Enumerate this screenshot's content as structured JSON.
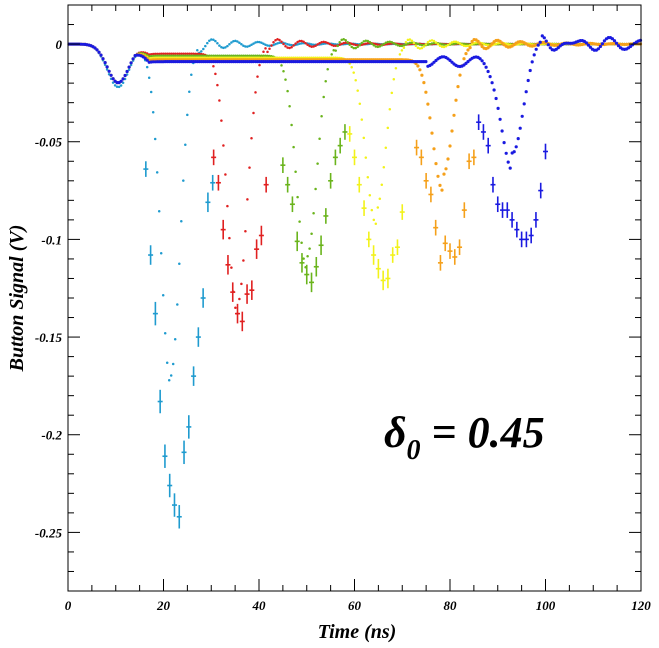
{
  "chart_data": {
    "type": "scatter",
    "title": "",
    "xlabel": "Time (ns)",
    "ylabel": "Button Signal (V)",
    "xlim": [
      0,
      120
    ],
    "ylim": [
      -0.28,
      0.02
    ],
    "x_ticks": [
      0,
      20,
      40,
      60,
      80,
      100,
      120
    ],
    "x_tick_labels": [
      "0",
      "20",
      "40",
      "60",
      "80",
      "100",
      "120"
    ],
    "y_ticks": [
      0,
      -0.05,
      -0.1,
      -0.15,
      -0.2,
      -0.25
    ],
    "y_tick_labels": [
      "0",
      "-0.05",
      "-0.1",
      "-0.15",
      "-0.2",
      "-0.25"
    ],
    "grid": false,
    "legend": "none",
    "annotation": {
      "symbol": "δ",
      "subscript": "0",
      "text": " = 0.45"
    },
    "series": [
      {
        "color": "#1f9bcf",
        "simulated": {
          "center": 21.5,
          "min": -0.17,
          "width": 2.8
        },
        "measured": {
          "x": [
            16.3,
            17.3,
            18.3,
            19.3,
            20.3,
            21.3,
            22.3,
            23.3,
            24.3,
            25.3,
            26.3,
            27.3,
            28.3,
            29.3,
            30.3
          ],
          "y": [
            -0.064,
            -0.108,
            -0.138,
            -0.183,
            -0.211,
            -0.226,
            -0.236,
            -0.242,
            -0.209,
            -0.196,
            -0.17,
            -0.15,
            -0.13,
            -0.081,
            -0.071
          ],
          "err": [
            0.004,
            0.005,
            0.006,
            0.006,
            0.006,
            0.006,
            0.006,
            0.006,
            0.006,
            0.006,
            0.005,
            0.005,
            0.005,
            0.005,
            0.004
          ]
        }
      },
      {
        "color": "#e02020",
        "simulated": {
          "center": 35.5,
          "min": -0.133,
          "width": 2.9
        },
        "measured": {
          "x": [
            30.5,
            31.5,
            32.5,
            33.5,
            34.5,
            35.5,
            36.5,
            37.5,
            38.5,
            39.5,
            40.5,
            41.5
          ],
          "y": [
            -0.058,
            -0.071,
            -0.095,
            -0.113,
            -0.127,
            -0.138,
            -0.142,
            -0.128,
            -0.126,
            -0.105,
            -0.098,
            -0.072
          ],
          "err": [
            0.004,
            0.004,
            0.005,
            0.005,
            0.005,
            0.005,
            0.005,
            0.005,
            0.005,
            0.005,
            0.005,
            0.004
          ]
        }
      },
      {
        "color": "#6ab41c",
        "simulated": {
          "center": 50.0,
          "min": -0.109,
          "width": 3.0
        },
        "measured": {
          "x": [
            45,
            46,
            47,
            48,
            49,
            50,
            51,
            52,
            53,
            54,
            55,
            56,
            57,
            58
          ],
          "y": [
            -0.062,
            -0.072,
            -0.082,
            -0.101,
            -0.112,
            -0.118,
            -0.122,
            -0.114,
            -0.103,
            -0.088,
            -0.07,
            -0.058,
            -0.052,
            -0.045
          ],
          "err": [
            0.004,
            0.004,
            0.004,
            0.005,
            0.005,
            0.005,
            0.005,
            0.005,
            0.005,
            0.004,
            0.004,
            0.004,
            0.004,
            0.004
          ]
        }
      },
      {
        "color": "#f2f21a",
        "simulated": {
          "center": 64.5,
          "min": -0.085,
          "width": 3.0
        },
        "measured": {
          "x": [
            59,
            60,
            61,
            62,
            63,
            64,
            65,
            66,
            67,
            68,
            69,
            70
          ],
          "y": [
            -0.046,
            -0.058,
            -0.072,
            -0.084,
            -0.1,
            -0.108,
            -0.115,
            -0.121,
            -0.12,
            -0.108,
            -0.104,
            -0.086
          ],
          "err": [
            0.004,
            0.004,
            0.004,
            0.004,
            0.004,
            0.005,
            0.005,
            0.005,
            0.005,
            0.004,
            0.004,
            0.004
          ]
        }
      },
      {
        "color": "#f5a01a",
        "simulated": {
          "center": 78.5,
          "min": -0.067,
          "width": 3.0
        },
        "measured": {
          "x": [
            73,
            74,
            75,
            76,
            77,
            78,
            79,
            80,
            81,
            82,
            83,
            84,
            85
          ],
          "y": [
            -0.053,
            -0.058,
            -0.07,
            -0.077,
            -0.094,
            -0.112,
            -0.102,
            -0.106,
            -0.109,
            -0.104,
            -0.085,
            -0.06,
            -0.058
          ],
          "err": [
            0.004,
            0.004,
            0.004,
            0.004,
            0.004,
            0.004,
            0.004,
            0.004,
            0.004,
            0.004,
            0.004,
            0.004,
            0.004
          ]
        }
      },
      {
        "color": "#1a1ae0",
        "simulated": {
          "center": 93.0,
          "min": -0.058,
          "width": 3.0
        },
        "measured": {
          "x": [
            86,
            87,
            88,
            89,
            90,
            91,
            92,
            93,
            94,
            95,
            96,
            97,
            98,
            99,
            100
          ],
          "y": [
            -0.04,
            -0.045,
            -0.052,
            -0.072,
            -0.082,
            -0.085,
            -0.085,
            -0.09,
            -0.095,
            -0.1,
            -0.1,
            -0.098,
            -0.09,
            -0.075,
            -0.055
          ],
          "err": [
            0.004,
            0.004,
            0.004,
            0.004,
            0.004,
            0.004,
            0.004,
            0.004,
            0.004,
            0.004,
            0.004,
            0.004,
            0.004,
            0.004,
            0.004
          ]
        }
      }
    ]
  }
}
